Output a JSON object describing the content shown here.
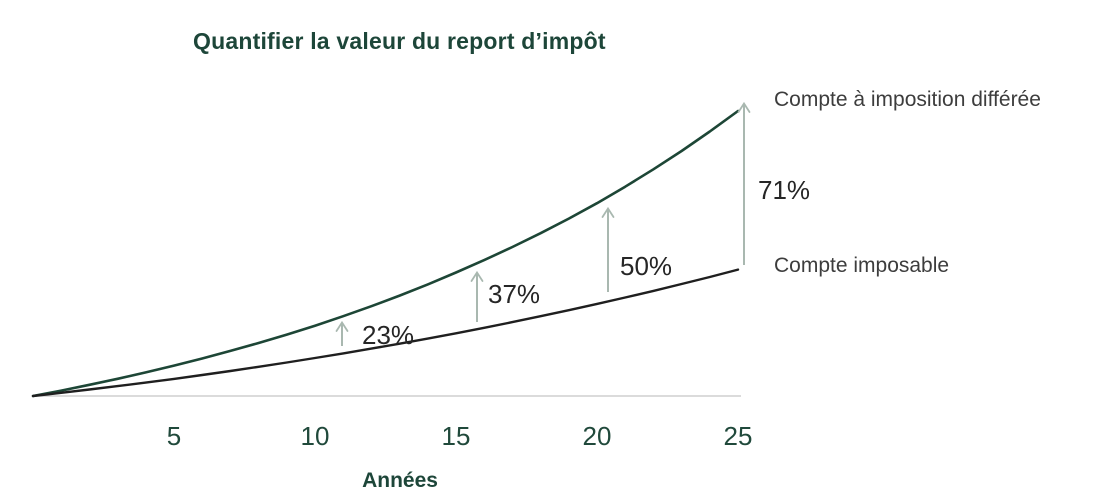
{
  "chart_data": {
    "type": "line",
    "title": "Quantifier la valeur du report d’impôt",
    "xlabel": "Années",
    "ylabel": "",
    "x_range": [
      0,
      25
    ],
    "x_tick_labels": [
      "5",
      "10",
      "15",
      "20",
      "25"
    ],
    "grid": false,
    "axis_color": "#c5c5c5",
    "arrow_color": "#a9b8b0",
    "series": [
      {
        "name": "Compte à imposition différée",
        "color": "#1d4636",
        "x": [
          0,
          5,
          10,
          15,
          20,
          25
        ],
        "values": [
          1.0,
          1.32,
          1.74,
          2.3,
          3.03,
          4.0
        ]
      },
      {
        "name": "Compte imposable",
        "color": "#1f1f1f",
        "x": [
          0,
          5,
          10,
          15,
          20,
          25
        ],
        "values": [
          1.0,
          1.18,
          1.4,
          1.66,
          1.97,
          2.33
        ]
      }
    ],
    "annotations": [
      {
        "label": "23%",
        "year": 11
      },
      {
        "label": "37%",
        "year": 16
      },
      {
        "label": "50%",
        "year": 20.5
      },
      {
        "label": "71%",
        "year": 25
      }
    ],
    "legend_position": "labels-at-line-ends-right"
  }
}
